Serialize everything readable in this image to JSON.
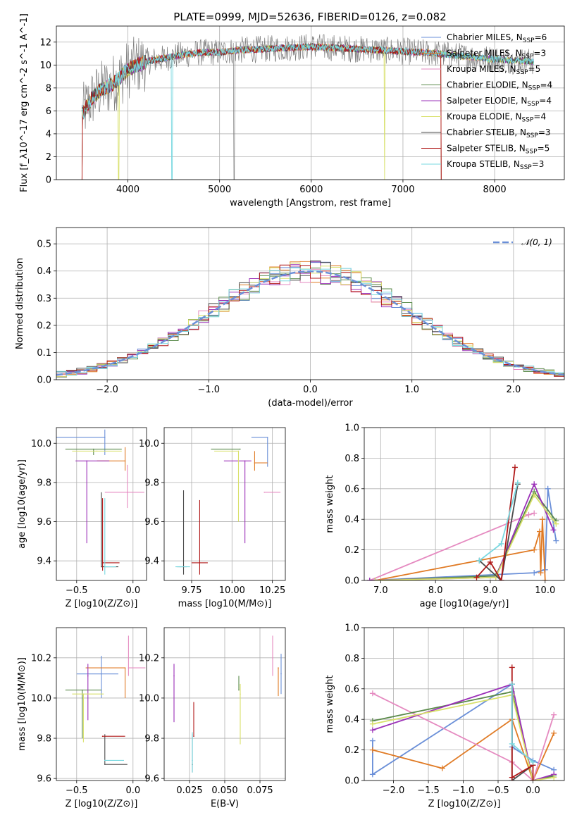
{
  "title": "PLATE=0999, MJD=52636, FIBERID=0126, z=0.082",
  "colors": {
    "Chabrier MILES": "#6a8fd8",
    "Salpeter MILES": "#e07a24",
    "Kroupa MILES": "#e58ac0",
    "Chabrier ELODIE": "#5a8a4a",
    "Salpeter ELODIE": "#9b30b8",
    "Kroupa ELODIE": "#d8e06a",
    "Chabrier STELIB": "#4a4a4a",
    "Salpeter STELIB": "#b01818",
    "Kroupa STELIB": "#78d8e0",
    "data": "#7f7f7f"
  },
  "chart_data": [
    {
      "id": "spectrum",
      "type": "line",
      "title": "PLATE=0999, MJD=52636, FIBERID=0126, z=0.082",
      "xlabel": "wavelength [Angstrom, rest frame]",
      "ylabel": "Flux [f_λ10^-17 erg cm^-2 s^-1 A^-1]",
      "xlim": [
        3220,
        8760
      ],
      "ylim": [
        0,
        13.4
      ],
      "xticks": [
        4000,
        5000,
        6000,
        7000,
        8000
      ],
      "yticks": [
        0,
        2,
        4,
        6,
        8,
        10,
        12
      ],
      "legend_position": "right",
      "legend": [
        {
          "model": "Chabrier MILES",
          "nssp": "6"
        },
        {
          "model": "Salpeter MILES",
          "nssp": "3"
        },
        {
          "model": "Kroupa MILES",
          "nssp": "5"
        },
        {
          "model": "Chabrier ELODIE",
          "nssp": "4"
        },
        {
          "model": "Salpeter ELODIE",
          "nssp": "4"
        },
        {
          "model": "Kroupa ELODIE",
          "nssp": "4"
        },
        {
          "model": "Chabrier STELIB",
          "nssp": "3"
        },
        {
          "model": "Salpeter STELIB",
          "nssp": "5"
        },
        {
          "model": "Kroupa STELIB",
          "nssp": "3"
        }
      ],
      "continuum": {
        "x": [
          3500,
          3600,
          3700,
          3800,
          3900,
          4000,
          4100,
          4200,
          4400,
          4600,
          4800,
          5000,
          5200,
          5500,
          6000,
          6500,
          7000,
          7400,
          7600,
          8000,
          8400
        ],
        "y": [
          5.7,
          7.0,
          7.8,
          8.2,
          8.8,
          9.6,
          10.0,
          10.3,
          10.6,
          10.9,
          11.1,
          11.1,
          11.3,
          11.4,
          11.6,
          11.4,
          11.2,
          11.0,
          10.8,
          10.5,
          10.3
        ]
      },
      "dropouts": {
        "Chabrier MILES": [
          3500,
          7420
        ],
        "Salpeter MILES": [
          3500,
          7420
        ],
        "Kroupa ELODIE": [
          3900,
          6800
        ],
        "Salpeter STELIB": [
          3500,
          7420
        ],
        "Kroupa STELIB": [
          4480
        ],
        "data": [
          5160
        ]
      }
    },
    {
      "id": "residuals",
      "type": "line",
      "xlabel": "(data-model)/error",
      "ylabel": "Normed distribution",
      "xlim": [
        -2.5,
        2.5
      ],
      "ylim": [
        0,
        0.56
      ],
      "xticks": [
        -2,
        -1,
        0,
        1,
        2
      ],
      "yticks": [
        0.0,
        0.1,
        0.2,
        0.3,
        0.4,
        0.5
      ],
      "legend": [
        {
          "label": "𝒩(0, 1)",
          "style": "dashed"
        }
      ],
      "legend_position": "top-right",
      "reference": "normal(0,1)",
      "step_histograms": "nine model residual histograms, bin width 0.1"
    },
    {
      "id": "age_vs_Z",
      "type": "scatter",
      "xlabel": "Z [log10(Z/Z⊙)]",
      "ylabel": "age  [log10(age/yr)]",
      "xlim": [
        -0.68,
        0.12
      ],
      "ylim": [
        9.3,
        10.08
      ],
      "xticks": [
        -0.5,
        0.0
      ],
      "yticks": [
        9.4,
        9.6,
        9.8,
        10.0
      ],
      "points": [
        {
          "model": "Chabrier MILES",
          "x": -0.25,
          "y": 10.03,
          "xerr": [
            0.45,
            0.0
          ],
          "yerr": [
            0.09,
            0.04
          ]
        },
        {
          "model": "Salpeter MILES",
          "x": -0.07,
          "y": 9.91,
          "xerr": [
            0.25,
            0.0
          ],
          "yerr": [
            0.05,
            0.07
          ]
        },
        {
          "model": "Kroupa MILES",
          "x": -0.05,
          "y": 9.75,
          "xerr": [
            0.2,
            0.15
          ],
          "yerr": [
            0.08,
            0.14
          ]
        },
        {
          "model": "Chabrier ELODIE",
          "x": -0.35,
          "y": 9.97,
          "xerr": [
            0.25,
            0.25
          ],
          "yerr": [
            0.03,
            0.0
          ]
        },
        {
          "model": "Salpeter ELODIE",
          "x": -0.41,
          "y": 9.91,
          "xerr": [
            0.1,
            0.2
          ],
          "yerr": [
            0.42,
            0.0
          ]
        },
        {
          "model": "Kroupa ELODIE",
          "x": -0.32,
          "y": 9.96,
          "xerr": [
            0.22,
            0.22
          ],
          "yerr": [
            0.0,
            0.0
          ]
        },
        {
          "model": "Chabrier STELIB",
          "x": -0.28,
          "y": 9.37,
          "xerr": [
            0.0,
            0.15
          ],
          "yerr": [
            0.0,
            0.38
          ]
        },
        {
          "model": "Salpeter STELIB",
          "x": -0.27,
          "y": 9.39,
          "xerr": [
            0.0,
            0.15
          ],
          "yerr": [
            0.04,
            0.33
          ]
        },
        {
          "model": "Kroupa STELIB",
          "x": -0.25,
          "y": 9.37,
          "xerr": [
            0.0,
            0.1
          ],
          "yerr": [
            0.04,
            0.35
          ]
        }
      ]
    },
    {
      "id": "age_vs_mass",
      "type": "scatter",
      "xlabel": "mass [log10(M/M⊙)]",
      "ylabel": "",
      "xlim": [
        9.58,
        10.33
      ],
      "ylim": [
        9.3,
        10.08
      ],
      "xticks": [
        9.75,
        10.0,
        10.25
      ],
      "yticks": [
        9.4,
        9.6,
        9.8,
        10.0
      ],
      "points": [
        {
          "model": "Chabrier MILES",
          "x": 10.22,
          "y": 10.03,
          "xerr": [
            0.1,
            0.0
          ],
          "yerr": [
            0.15,
            0.0
          ]
        },
        {
          "model": "Salpeter MILES",
          "x": 10.14,
          "y": 9.9,
          "xerr": [
            0.0,
            0.08
          ],
          "yerr": [
            0.04,
            0.06
          ]
        },
        {
          "model": "Kroupa MILES",
          "x": 10.2,
          "y": 9.75,
          "xerr": [
            0.0,
            0.1
          ],
          "yerr": [
            0.0,
            0.0
          ]
        },
        {
          "model": "Chabrier ELODIE",
          "x": 10.05,
          "y": 9.97,
          "xerr": [
            0.18,
            0.0
          ],
          "yerr": [
            0.0,
            0.0
          ]
        },
        {
          "model": "Salpeter ELODIE",
          "x": 10.08,
          "y": 9.91,
          "xerr": [
            0.13,
            0.04
          ],
          "yerr": [
            0.42,
            0.0
          ]
        },
        {
          "model": "Kroupa ELODIE",
          "x": 10.04,
          "y": 9.96,
          "xerr": [
            0.15,
            0.0
          ],
          "yerr": [
            0.36,
            0.0
          ]
        },
        {
          "model": "Chabrier STELIB",
          "x": 9.7,
          "y": 9.37,
          "xerr": [
            0.04,
            0.02
          ],
          "yerr": [
            0.04,
            0.39
          ]
        },
        {
          "model": "Salpeter STELIB",
          "x": 9.8,
          "y": 9.39,
          "xerr": [
            0.05,
            0.05
          ],
          "yerr": [
            0.06,
            0.32
          ]
        },
        {
          "model": "Kroupa STELIB",
          "x": 9.68,
          "y": 9.37,
          "xerr": [
            0.03,
            0.06
          ],
          "yerr": [
            0.0,
            0.0
          ]
        }
      ]
    },
    {
      "id": "weight_vs_age",
      "type": "line",
      "xlabel": "age  [log10(age/yr)]",
      "ylabel": "mass weight",
      "xlim": [
        6.7,
        10.35
      ],
      "ylim": [
        0,
        1.0
      ],
      "xticks": [
        7,
        8,
        9,
        10
      ],
      "yticks": [
        0.0,
        0.2,
        0.4,
        0.6,
        0.8,
        1.0
      ],
      "series": [
        {
          "model": "Chabrier MILES",
          "x": [
            6.8,
            9.8,
            10.0,
            10.05,
            10.2
          ],
          "y": [
            0.0,
            0.05,
            0.07,
            0.6,
            0.26
          ]
        },
        {
          "model": "Salpeter MILES",
          "x": [
            6.9,
            9.8,
            9.9,
            9.92,
            9.95,
            10.0
          ],
          "y": [
            0.0,
            0.2,
            0.32,
            0.05,
            0.4,
            0.0
          ]
        },
        {
          "model": "Kroupa MILES",
          "x": [
            6.8,
            9.7,
            9.8
          ],
          "y": [
            0.0,
            0.43,
            0.44
          ]
        },
        {
          "model": "Chabrier ELODIE",
          "x": [
            6.9,
            9.1,
            9.8,
            10.2
          ],
          "y": [
            0.0,
            0.03,
            0.58,
            0.39
          ]
        },
        {
          "model": "Salpeter ELODIE",
          "x": [
            6.8,
            9.1,
            9.8,
            10.15
          ],
          "y": [
            0.0,
            0.02,
            0.63,
            0.33
          ]
        },
        {
          "model": "Kroupa ELODIE",
          "x": [
            6.9,
            9.1,
            9.8,
            10.2
          ],
          "y": [
            0.0,
            0.02,
            0.56,
            0.37
          ]
        },
        {
          "model": "Chabrier STELIB",
          "x": [
            8.8,
            9.2,
            9.5
          ],
          "y": [
            0.13,
            0.0,
            0.63
          ]
        },
        {
          "model": "Salpeter STELIB",
          "x": [
            8.75,
            9.0,
            9.2,
            9.45
          ],
          "y": [
            0.02,
            0.12,
            0.0,
            0.74
          ]
        },
        {
          "model": "Kroupa STELIB",
          "x": [
            8.8,
            9.2,
            9.5
          ],
          "y": [
            0.13,
            0.24,
            0.64
          ]
        }
      ]
    },
    {
      "id": "mass_vs_Z",
      "type": "scatter",
      "xlabel": "Z [log10(Z/Z⊙)]",
      "ylabel": "mass [log10(M/M⊙)]",
      "xlim": [
        -0.68,
        0.12
      ],
      "ylim": [
        9.59,
        10.35
      ],
      "xticks": [
        -0.5,
        0.0
      ],
      "yticks": [
        9.6,
        9.8,
        10.0,
        10.2
      ],
      "points": [
        {
          "model": "Chabrier MILES",
          "x": -0.28,
          "y": 10.12,
          "xerr": [
            0.22,
            0.15
          ],
          "yerr": [
            0.12,
            0.09
          ]
        },
        {
          "model": "Salpeter MILES",
          "x": -0.07,
          "y": 10.15,
          "xerr": [
            0.35,
            0.0
          ],
          "yerr": [
            0.15,
            0.0
          ]
        },
        {
          "model": "Kroupa MILES",
          "x": -0.04,
          "y": 10.15,
          "xerr": [
            0.0,
            0.15
          ],
          "yerr": [
            0.04,
            0.16
          ]
        },
        {
          "model": "Chabrier ELODIE",
          "x": -0.45,
          "y": 10.04,
          "xerr": [
            0.15,
            0.17
          ],
          "yerr": [
            0.24,
            0.0
          ]
        },
        {
          "model": "Salpeter ELODIE",
          "x": -0.4,
          "y": 10.11,
          "xerr": [
            0.0,
            0.0
          ],
          "yerr": [
            0.22,
            0.06
          ]
        },
        {
          "model": "Kroupa ELODIE",
          "x": -0.44,
          "y": 10.02,
          "xerr": [
            0.1,
            0.18
          ],
          "yerr": [
            0.24,
            0.0
          ]
        },
        {
          "model": "Chabrier STELIB",
          "x": -0.25,
          "y": 9.67,
          "xerr": [
            0.0,
            0.2
          ],
          "yerr": [
            0.0,
            0.15
          ]
        },
        {
          "model": "Salpeter STELIB",
          "x": -0.27,
          "y": 9.81,
          "xerr": [
            0.0,
            0.2
          ],
          "yerr": [
            0.0,
            0.0
          ]
        },
        {
          "model": "Kroupa STELIB",
          "x": -0.25,
          "y": 9.69,
          "xerr": [
            0.0,
            0.17
          ],
          "yerr": [
            0.0,
            0.0
          ]
        }
      ]
    },
    {
      "id": "mass_vs_ebv",
      "type": "scatter",
      "xlabel": "E(B-V)",
      "ylabel": "",
      "xlim": [
        0.007,
        0.093
      ],
      "ylim": [
        9.59,
        10.35
      ],
      "xticks": [
        0.025,
        0.05,
        0.075
      ],
      "yticks": [
        9.6,
        9.8,
        10.0,
        10.2
      ],
      "points": [
        {
          "model": "Chabrier MILES",
          "x": 0.09,
          "y": 10.12,
          "yerr": [
            0.1,
            0.1
          ]
        },
        {
          "model": "Salpeter MILES",
          "x": 0.088,
          "y": 10.15,
          "yerr": [
            0.14,
            0.0
          ]
        },
        {
          "model": "Kroupa MILES",
          "x": 0.084,
          "y": 10.2,
          "yerr": [
            0.09,
            0.11
          ]
        },
        {
          "model": "Chabrier ELODIE",
          "x": 0.06,
          "y": 10.04,
          "yerr": [
            0.0,
            0.07
          ]
        },
        {
          "model": "Salpeter ELODIE",
          "x": 0.014,
          "y": 10.11,
          "yerr": [
            0.23,
            0.06
          ]
        },
        {
          "model": "Kroupa ELODIE",
          "x": 0.061,
          "y": 10.02,
          "yerr": [
            0.25,
            0.05
          ]
        },
        {
          "model": "Chabrier STELIB",
          "x": 0.027,
          "y": 9.67,
          "yerr": [
            0.04,
            0.15
          ]
        },
        {
          "model": "Salpeter STELIB",
          "x": 0.028,
          "y": 9.81,
          "yerr": [
            0.0,
            0.17
          ]
        },
        {
          "model": "Kroupa STELIB",
          "x": 0.027,
          "y": 9.69,
          "yerr": [
            0.06,
            0.14
          ]
        }
      ]
    },
    {
      "id": "weight_vs_Z",
      "type": "line",
      "xlabel": "Z [log10(Z/Z⊙)]",
      "ylabel": "mass weight",
      "xlim": [
        -2.42,
        0.45
      ],
      "ylim": [
        0,
        1.0
      ],
      "xticks": [
        -2.0,
        -1.5,
        -1.0,
        -0.5,
        0.0
      ],
      "yticks": [
        0.0,
        0.2,
        0.4,
        0.6,
        0.8,
        1.0
      ],
      "series": [
        {
          "model": "Chabrier MILES",
          "x": [
            -2.3,
            -2.3,
            -0.3,
            -0.3,
            0.0,
            0.3
          ],
          "y": [
            0.26,
            0.04,
            0.63,
            0.22,
            0.13,
            0.07
          ]
        },
        {
          "model": "Salpeter MILES",
          "x": [
            -2.3,
            -1.3,
            -0.3,
            0.0,
            0.3
          ],
          "y": [
            0.2,
            0.08,
            0.4,
            0.0,
            0.31
          ]
        },
        {
          "model": "Kroupa MILES",
          "x": [
            -2.3,
            -0.3,
            0.0,
            0.3
          ],
          "y": [
            0.57,
            0.12,
            0.0,
            0.43
          ]
        },
        {
          "model": "Chabrier ELODIE",
          "x": [
            -2.3,
            -0.3,
            0.0,
            0.3
          ],
          "y": [
            0.39,
            0.58,
            0.0,
            0.03
          ]
        },
        {
          "model": "Salpeter ELODIE",
          "x": [
            -2.3,
            -0.3,
            0.0,
            0.3
          ],
          "y": [
            0.33,
            0.63,
            0.0,
            0.04
          ]
        },
        {
          "model": "Kroupa ELODIE",
          "x": [
            -2.3,
            -0.3,
            0.0,
            0.3
          ],
          "y": [
            0.37,
            0.56,
            0.0,
            0.02
          ]
        },
        {
          "model": "Chabrier STELIB",
          "x": [
            -0.3,
            -0.3,
            0.0
          ],
          "y": [
            0.63,
            0.0,
            0.1
          ]
        },
        {
          "model": "Salpeter STELIB",
          "x": [
            -0.3,
            -0.3,
            0.0,
            0.0
          ],
          "y": [
            0.74,
            0.02,
            0.1,
            0.0
          ]
        },
        {
          "model": "Kroupa STELIB",
          "x": [
            -0.3,
            -0.3,
            0.0
          ],
          "y": [
            0.63,
            0.24,
            0.12
          ]
        }
      ]
    }
  ]
}
